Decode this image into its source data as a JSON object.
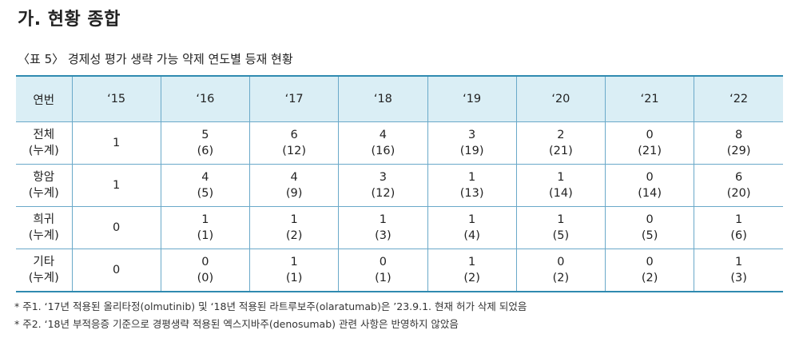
{
  "section_title": "가. 현황 종합",
  "table_caption": "〈표 5〉 경제성 평가 생략 가능 약제 연도별 등재 현황",
  "table": {
    "columns": [
      "연번",
      "‘15",
      "‘16",
      "‘17",
      "‘18",
      "‘19",
      "‘20",
      "‘21",
      "‘22"
    ],
    "rows": [
      {
        "label": [
          "전체",
          "(누계)"
        ],
        "cells": [
          [
            "1"
          ],
          [
            "5",
            "(6)"
          ],
          [
            "6",
            "(12)"
          ],
          [
            "4",
            "(16)"
          ],
          [
            "3",
            "(19)"
          ],
          [
            "2",
            "(21)"
          ],
          [
            "0",
            "(21)"
          ],
          [
            "8",
            "(29)"
          ]
        ]
      },
      {
        "label": [
          "항암",
          "(누계)"
        ],
        "cells": [
          [
            "1"
          ],
          [
            "4",
            "(5)"
          ],
          [
            "4",
            "(9)"
          ],
          [
            "3",
            "(12)"
          ],
          [
            "1",
            "(13)"
          ],
          [
            "1",
            "(14)"
          ],
          [
            "0",
            "(14)"
          ],
          [
            "6",
            "(20)"
          ]
        ]
      },
      {
        "label": [
          "희귀",
          "(누계)"
        ],
        "cells": [
          [
            "0"
          ],
          [
            "1",
            "(1)"
          ],
          [
            "1",
            "(2)"
          ],
          [
            "1",
            "(3)"
          ],
          [
            "1",
            "(4)"
          ],
          [
            "1",
            "(5)"
          ],
          [
            "0",
            "(5)"
          ],
          [
            "1",
            "(6)"
          ]
        ]
      },
      {
        "label": [
          "기타",
          "(누계)"
        ],
        "cells": [
          [
            "0"
          ],
          [
            "0",
            "(0)"
          ],
          [
            "1",
            "(1)"
          ],
          [
            "0",
            "(1)"
          ],
          [
            "1",
            "(2)"
          ],
          [
            "0",
            "(2)"
          ],
          [
            "0",
            "(2)"
          ],
          [
            "1",
            "(3)"
          ]
        ]
      }
    ]
  },
  "footnotes": [
    "* 주1. ‘17년 적용된 올리타정(olmutinib) 및 ‘18년 적용된 라트루보주(olaratumab)은 ’23.9.1. 현재 허가 삭제 되었음",
    "* 주2. ‘18년 부적응증 기준으로 경평생략 적용된 엑스지바주(denosumab) 관련 사항은 반영하지 않았음"
  ]
}
